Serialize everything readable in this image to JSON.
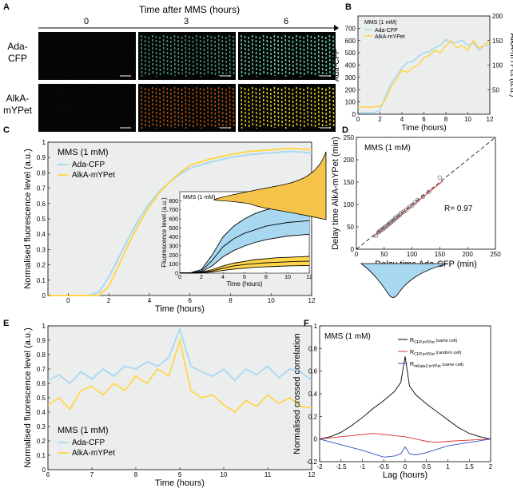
{
  "panel_labels": {
    "a": "A",
    "b": "B",
    "c": "C",
    "d": "D",
    "e": "E",
    "f": "F"
  },
  "panel_a": {
    "title": "Time after MMS (hours)",
    "times": [
      "0",
      "3",
      "6"
    ],
    "rows": [
      {
        "label1": "Ada-",
        "label2": "CFP",
        "colors": [
          "#0d1a14",
          "#4a9e8a",
          "#6fd9b0"
        ]
      },
      {
        "label1": "AlkA-",
        "label2": "mYPet",
        "colors": [
          "#2a1000",
          "#b8560c",
          "#f2d020"
        ]
      }
    ]
  },
  "chart_data": [
    {
      "id": "B",
      "type": "line",
      "annotation": "MMS (1 mM)",
      "xlabel": "Time (hours)",
      "ylabel": "Ada-CFP",
      "y2label": "AlkA-mYPet (a.u.)",
      "xlim": [
        0,
        12
      ],
      "ylim": [
        0,
        800
      ],
      "y2lim": [
        0,
        200
      ],
      "xticks": [
        0,
        2,
        4,
        6,
        8,
        10,
        12
      ],
      "yticks": [
        0,
        100,
        200,
        300,
        400,
        500,
        600,
        700
      ],
      "y2ticks": [
        50,
        100,
        150,
        200
      ],
      "series": [
        {
          "name": "Ada-CFP",
          "color": "#a8d8f0",
          "axis": "left",
          "x": [
            0,
            0.5,
            1,
            1.5,
            2,
            2.5,
            3,
            3.5,
            4,
            4.5,
            5,
            5.5,
            6,
            6.5,
            7,
            7.5,
            8,
            8.5,
            9,
            9.5,
            10,
            10.5,
            11,
            11.5,
            12
          ],
          "y": [
            10,
            12,
            10,
            14,
            30,
            150,
            250,
            310,
            380,
            420,
            430,
            470,
            500,
            510,
            540,
            560,
            610,
            580,
            590,
            600,
            560,
            580,
            520,
            560,
            550
          ]
        },
        {
          "name": "AlkA-mYPet",
          "color": "#ffd54a",
          "axis": "right",
          "x": [
            0,
            0.5,
            1,
            1.5,
            2,
            2.5,
            3,
            3.5,
            4,
            4.5,
            5,
            5.5,
            6,
            6.5,
            7,
            7.5,
            8,
            8.5,
            9,
            9.5,
            10,
            10.5,
            11,
            11.5,
            12
          ],
          "y": [
            15,
            15,
            14,
            15,
            16,
            30,
            55,
            70,
            90,
            85,
            95,
            100,
            115,
            120,
            130,
            125,
            140,
            150,
            135,
            140,
            130,
            150,
            135,
            140,
            150
          ]
        }
      ]
    },
    {
      "id": "C",
      "type": "line",
      "annotation": "MMS (1 mM)",
      "xlabel": "Time (hours)",
      "ylabel": "Normalised fluorescence level (a.u.)",
      "xlim": [
        -1,
        12
      ],
      "ylim": [
        0,
        1
      ],
      "xticks": [
        0,
        2,
        4,
        6,
        8,
        10,
        12
      ],
      "yticks": [
        0,
        0.1,
        0.2,
        0.3,
        0.4,
        0.5,
        0.6,
        0.7,
        0.8,
        0.9,
        1
      ],
      "series": [
        {
          "name": "Ada-CFP",
          "color": "#a8d8f0",
          "x": [
            -1,
            0,
            0.5,
            1,
            1.5,
            2,
            2.5,
            3,
            3.5,
            4,
            4.5,
            5,
            5.5,
            6,
            7,
            8,
            9,
            10,
            11,
            12
          ],
          "y": [
            0,
            0,
            0,
            0,
            0.02,
            0.12,
            0.25,
            0.38,
            0.5,
            0.6,
            0.68,
            0.74,
            0.79,
            0.83,
            0.87,
            0.9,
            0.92,
            0.93,
            0.94,
            0.93
          ]
        },
        {
          "name": "AlkA-mYPet",
          "color": "#ffd54a",
          "x": [
            -1,
            0,
            0.5,
            1,
            1.5,
            2,
            2.5,
            3,
            3.5,
            4,
            4.5,
            5,
            5.5,
            6,
            7,
            8,
            9,
            10,
            11,
            12
          ],
          "y": [
            0,
            0,
            0,
            0,
            0,
            0.06,
            0.2,
            0.34,
            0.47,
            0.58,
            0.67,
            0.74,
            0.8,
            0.85,
            0.89,
            0.92,
            0.94,
            0.95,
            0.96,
            0.95
          ]
        }
      ],
      "inset": {
        "annotation": "MMS (1 mM)",
        "xlabel": "Time (hours)",
        "ylabel": "Fluorescence level (a.u.)",
        "xlim": [
          0,
          12
        ],
        "ylim": [
          0,
          900
        ],
        "xticks": [
          0,
          2,
          4,
          6,
          8,
          10,
          12
        ],
        "yticks": [
          0,
          100,
          200,
          300,
          400,
          500,
          600,
          700,
          800
        ],
        "x": [
          0,
          1,
          2,
          3,
          4,
          5,
          6,
          7,
          8,
          9,
          10,
          11,
          12
        ],
        "cfp_upper": [
          5,
          5,
          40,
          200,
          400,
          520,
          600,
          660,
          700,
          730,
          760,
          770,
          780
        ],
        "cfp_mean": [
          3,
          3,
          25,
          140,
          290,
          380,
          440,
          480,
          520,
          540,
          560,
          570,
          580
        ],
        "cfp_lower": [
          2,
          2,
          15,
          80,
          180,
          250,
          300,
          340,
          370,
          390,
          410,
          420,
          430
        ],
        "yfp_upper": [
          2,
          2,
          10,
          40,
          80,
          110,
          130,
          150,
          160,
          170,
          175,
          180,
          185
        ],
        "yfp_mean": [
          1,
          1,
          6,
          25,
          55,
          80,
          95,
          105,
          115,
          120,
          125,
          130,
          132
        ],
        "yfp_lower": [
          0,
          0,
          3,
          12,
          30,
          45,
          55,
          65,
          70,
          75,
          80,
          82,
          85
        ]
      }
    },
    {
      "id": "D",
      "type": "scatter",
      "annotation": "MMS (1 mM)",
      "xlabel": "Delay time Ada-CFP (min)",
      "ylabel": "Delay time AlkA-mYPet (min)",
      "xlim": [
        0,
        250
      ],
      "ylim": [
        0,
        250
      ],
      "xticks": [
        0,
        50,
        100,
        150,
        200,
        250
      ],
      "yticks": [
        0,
        50,
        100,
        150,
        200,
        250
      ],
      "stat_text": "R= 0.97",
      "x": [
        35,
        40,
        42,
        45,
        48,
        50,
        52,
        55,
        58,
        60,
        62,
        65,
        68,
        70,
        72,
        75,
        78,
        80,
        85,
        90,
        95,
        100,
        105,
        110,
        120,
        130,
        150
      ],
      "y": [
        30,
        38,
        40,
        44,
        45,
        48,
        50,
        52,
        56,
        58,
        60,
        63,
        66,
        70,
        70,
        74,
        76,
        80,
        84,
        88,
        94,
        98,
        104,
        110,
        118,
        128,
        160
      ]
    },
    {
      "id": "E",
      "type": "line",
      "annotation": "MMS (1 mM)",
      "xlabel": "Time (hours)",
      "ylabel": "Normalised fluorescence level (a.u.)",
      "xlim": [
        6,
        12
      ],
      "ylim": [
        0,
        1
      ],
      "xticks": [
        6,
        7,
        8,
        9,
        10,
        11,
        12
      ],
      "yticks": [
        0,
        0.1,
        0.2,
        0.3,
        0.4,
        0.5,
        0.6,
        0.7,
        0.8,
        0.9,
        1
      ],
      "series": [
        {
          "name": "Ada-CFP",
          "color": "#a8d8f0",
          "x": [
            6,
            6.25,
            6.5,
            6.75,
            7,
            7.25,
            7.5,
            7.75,
            8,
            8.25,
            8.5,
            8.75,
            9,
            9.25,
            9.5,
            9.75,
            10,
            10.25,
            10.5,
            10.75,
            11,
            11.25,
            11.5,
            11.75,
            12
          ],
          "y": [
            0.62,
            0.66,
            0.6,
            0.68,
            0.63,
            0.7,
            0.65,
            0.72,
            0.7,
            0.75,
            0.72,
            0.78,
            0.98,
            0.72,
            0.68,
            0.65,
            0.7,
            0.62,
            0.7,
            0.66,
            0.72,
            0.64,
            0.7,
            0.68,
            0.62
          ]
        },
        {
          "name": "AlkA-mYPet",
          "color": "#ffd54a",
          "x": [
            6,
            6.25,
            6.5,
            6.75,
            7,
            7.25,
            7.5,
            7.75,
            8,
            8.25,
            8.5,
            8.75,
            9,
            9.25,
            9.5,
            9.75,
            10,
            10.25,
            10.5,
            10.75,
            11,
            11.25,
            11.5,
            11.75,
            12
          ],
          "y": [
            0.45,
            0.5,
            0.42,
            0.55,
            0.58,
            0.52,
            0.6,
            0.55,
            0.65,
            0.6,
            0.7,
            0.65,
            0.9,
            0.55,
            0.5,
            0.52,
            0.45,
            0.4,
            0.48,
            0.44,
            0.52,
            0.46,
            0.5,
            0.44,
            0.43
          ]
        }
      ]
    },
    {
      "id": "F",
      "type": "line",
      "annotation": "MMS (1 mM)",
      "xlabel": "Lag (hours)",
      "ylabel": "Normalised crossed correlation",
      "xlim": [
        -2,
        2
      ],
      "ylim": [
        -0.2,
        1
      ],
      "xticks": [
        -2,
        -1.5,
        -1,
        -0.5,
        0,
        0.5,
        1,
        1.5,
        2
      ],
      "yticks": [
        -0.2,
        0,
        0.2,
        0.4,
        0.6,
        0.8,
        1
      ],
      "series": [
        {
          "name": "R",
          "sub": "CFP,mYPet",
          "suffix": "(same cell)",
          "color": "#000000",
          "x": [
            -2,
            -1.75,
            -1.5,
            -1.25,
            -1,
            -0.75,
            -0.5,
            -0.25,
            -0.1,
            0,
            0.1,
            0.25,
            0.5,
            0.75,
            1,
            1.25,
            1.5,
            1.75,
            2
          ],
          "y": [
            0,
            0.02,
            0.06,
            0.12,
            0.19,
            0.27,
            0.34,
            0.42,
            0.5,
            0.73,
            0.47,
            0.39,
            0.31,
            0.24,
            0.17,
            0.1,
            0.05,
            0.02,
            0
          ]
        },
        {
          "name": "R",
          "sub": "CFP,mYPet",
          "suffix": "(random cell)",
          "color": "#e03030",
          "x": [
            -2,
            -1.5,
            -1,
            -0.75,
            -0.5,
            -0.25,
            0,
            0.25,
            0.5,
            0.75,
            1,
            1.5,
            2
          ],
          "y": [
            0,
            0.02,
            0.04,
            0.05,
            0.04,
            0.03,
            0.02,
            0.0,
            -0.02,
            -0.03,
            -0.02,
            -0.01,
            0
          ]
        },
        {
          "name": "R",
          "sub": "mKate2,mYPet",
          "suffix": "(same cell)",
          "color": "#3050c0",
          "x": [
            -2,
            -1.5,
            -1,
            -0.75,
            -0.5,
            -0.25,
            -0.1,
            0,
            0.1,
            0.25,
            0.5,
            0.75,
            1,
            1.5,
            2
          ],
          "y": [
            0,
            -0.05,
            -0.1,
            -0.13,
            -0.16,
            -0.15,
            -0.13,
            -0.07,
            -0.13,
            -0.14,
            -0.12,
            -0.09,
            -0.06,
            -0.03,
            0
          ]
        }
      ]
    }
  ]
}
